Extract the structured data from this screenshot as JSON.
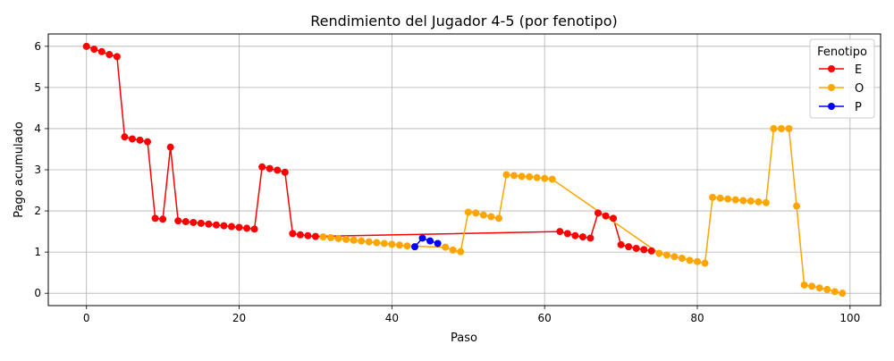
{
  "chart_data": {
    "type": "line",
    "title": "Rendimiento del Jugador 4-5 (por fenotipo)",
    "xlabel": "Paso",
    "ylabel": "Pago acumulado",
    "xlim": [
      -5,
      104
    ],
    "ylim": [
      -0.3,
      6.3
    ],
    "xticks": [
      0,
      20,
      40,
      60,
      80,
      100
    ],
    "yticks": [
      0,
      1,
      2,
      3,
      4,
      5,
      6
    ],
    "grid": true,
    "legend": {
      "title": "Fenotipo",
      "position": "top-right"
    },
    "series": [
      {
        "name": "E",
        "color": "#ff0000",
        "x": [
          0,
          1,
          2,
          3,
          4,
          5,
          6,
          7,
          8,
          9,
          10,
          11,
          12,
          13,
          14,
          15,
          16,
          17,
          18,
          19,
          20,
          21,
          22,
          23,
          24,
          25,
          26,
          27,
          28,
          29,
          30,
          62,
          63,
          64,
          65,
          66,
          67,
          68,
          69,
          70,
          71,
          72,
          73,
          74
        ],
        "y": [
          6.0,
          5.93,
          5.87,
          5.8,
          5.75,
          3.8,
          3.75,
          3.72,
          3.68,
          1.82,
          1.8,
          3.55,
          1.76,
          1.74,
          1.72,
          1.7,
          1.68,
          1.66,
          1.64,
          1.62,
          1.6,
          1.58,
          1.56,
          3.07,
          3.03,
          2.99,
          2.94,
          1.45,
          1.42,
          1.4,
          1.38,
          1.5,
          1.45,
          1.4,
          1.37,
          1.34,
          1.95,
          1.88,
          1.82,
          1.18,
          1.13,
          1.09,
          1.06,
          1.03
        ]
      },
      {
        "name": "O",
        "color": "#ffa500",
        "x": [
          31,
          32,
          33,
          34,
          35,
          36,
          37,
          38,
          39,
          40,
          41,
          42,
          47,
          48,
          49,
          50,
          51,
          52,
          53,
          54,
          55,
          56,
          57,
          58,
          59,
          60,
          61,
          75,
          76,
          77,
          78,
          79,
          80,
          81,
          82,
          83,
          84,
          85,
          86,
          87,
          88,
          89,
          90,
          91,
          92,
          93,
          94,
          95,
          96,
          97,
          98,
          99
        ],
        "y": [
          1.37,
          1.35,
          1.33,
          1.31,
          1.29,
          1.27,
          1.25,
          1.23,
          1.21,
          1.19,
          1.17,
          1.15,
          1.12,
          1.05,
          1.01,
          1.97,
          1.95,
          1.9,
          1.86,
          1.82,
          2.88,
          2.86,
          2.84,
          2.83,
          2.81,
          2.79,
          2.77,
          0.97,
          0.93,
          0.89,
          0.85,
          0.8,
          0.77,
          0.73,
          2.33,
          2.31,
          2.29,
          2.27,
          2.25,
          2.24,
          2.22,
          2.2,
          4.0,
          4.0,
          4.0,
          2.12,
          0.2,
          0.17,
          0.13,
          0.09,
          0.04,
          0.0
        ]
      },
      {
        "name": "P",
        "color": "#0000ff",
        "x": [
          43,
          44,
          45,
          46
        ],
        "y": [
          1.13,
          1.34,
          1.27,
          1.21
        ]
      }
    ]
  }
}
